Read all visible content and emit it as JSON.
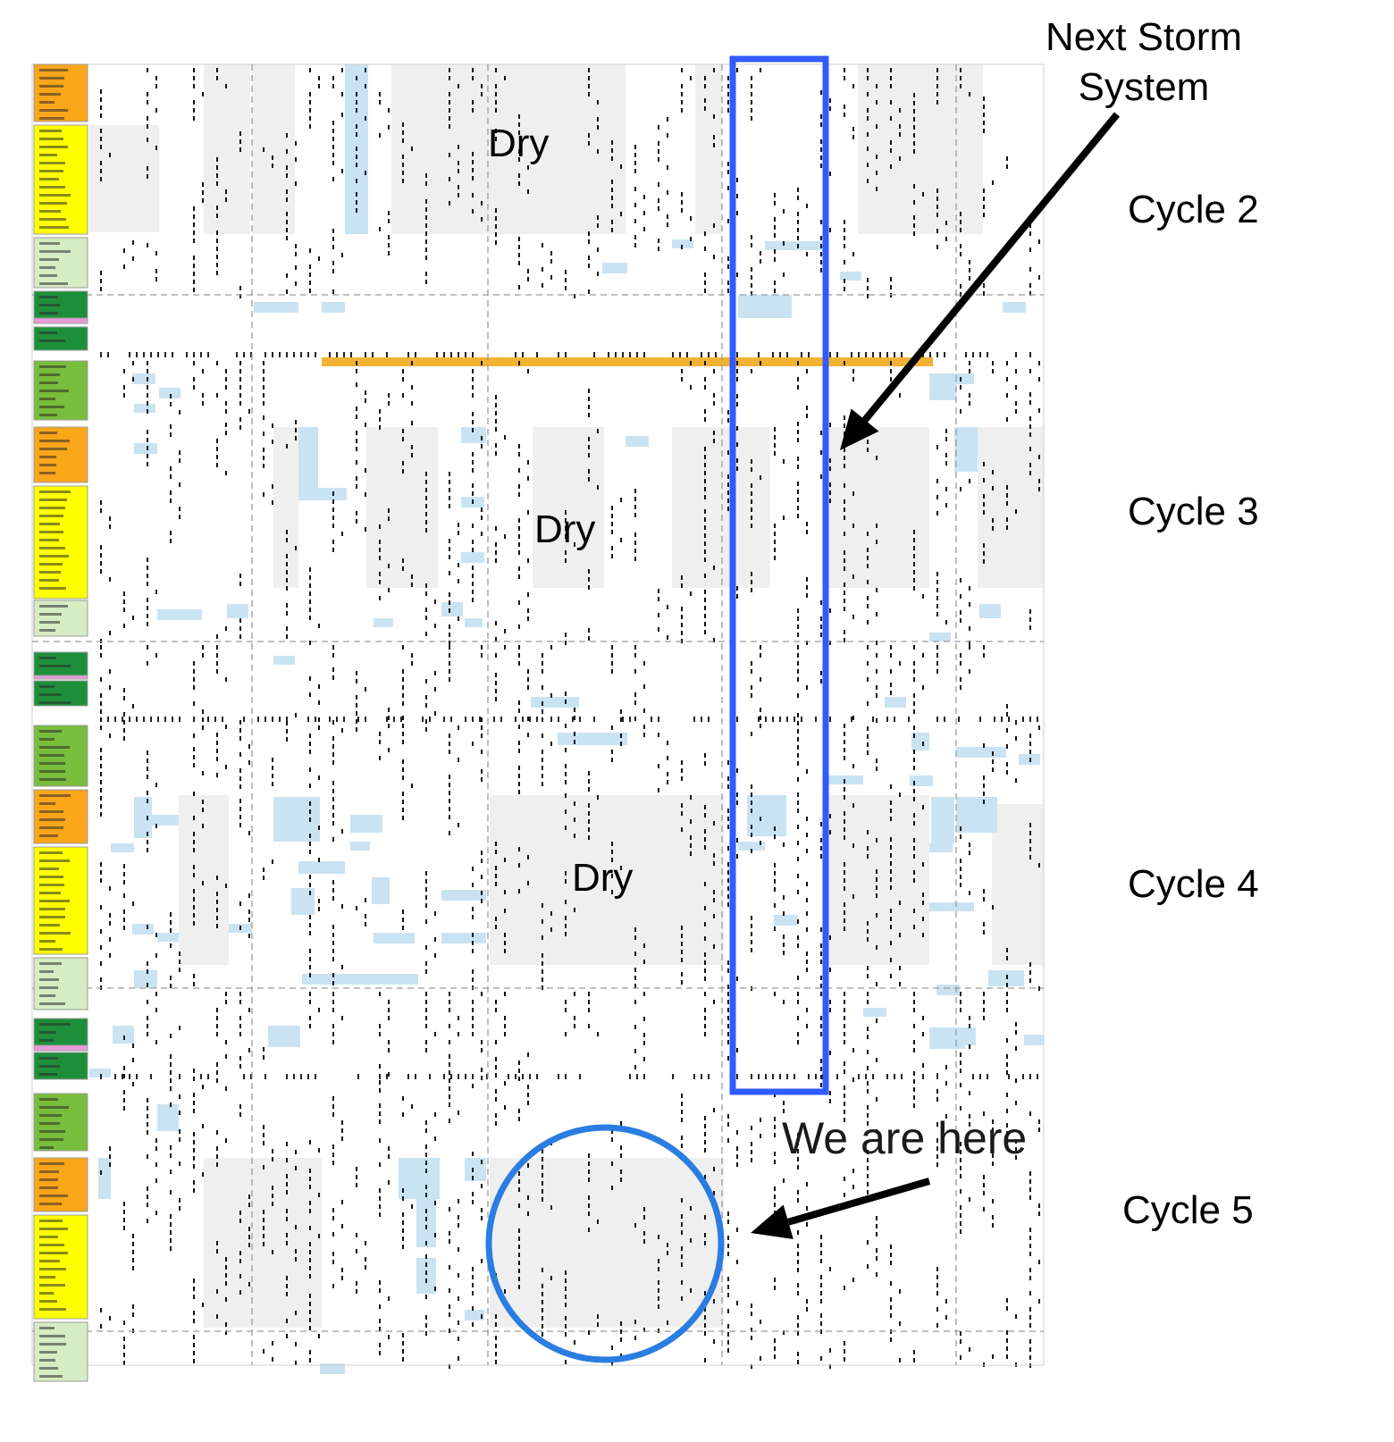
{
  "annotations": {
    "next_storm_line1": "Next Storm",
    "next_storm_line2": "System",
    "we_are_here": "We are here",
    "dry_label": "Dry"
  },
  "cycles": [
    {
      "label": "Cycle 2"
    },
    {
      "label": "Cycle 3"
    },
    {
      "label": "Cycle 4"
    },
    {
      "label": "Cycle 5"
    }
  ],
  "dry_regions": [
    {
      "label": "Dry"
    },
    {
      "label": "Dry"
    },
    {
      "label": "Dry"
    }
  ],
  "colors": {
    "storm_box": "#2f5bff",
    "here_circle": "#2a7de1",
    "dry_fill": "#efefef",
    "rain_fill": "#c9e3f3",
    "ridge_bar": "#f2b233",
    "grid": "#9a9a9a",
    "legend_orange": "#f9a61a",
    "legend_yellow": "#ffff00",
    "legend_pale_green": "#d6ecc5",
    "legend_dark_green": "#1d8f3a",
    "legend_green": "#79bd3c",
    "legend_pink": "#e79bd8"
  }
}
